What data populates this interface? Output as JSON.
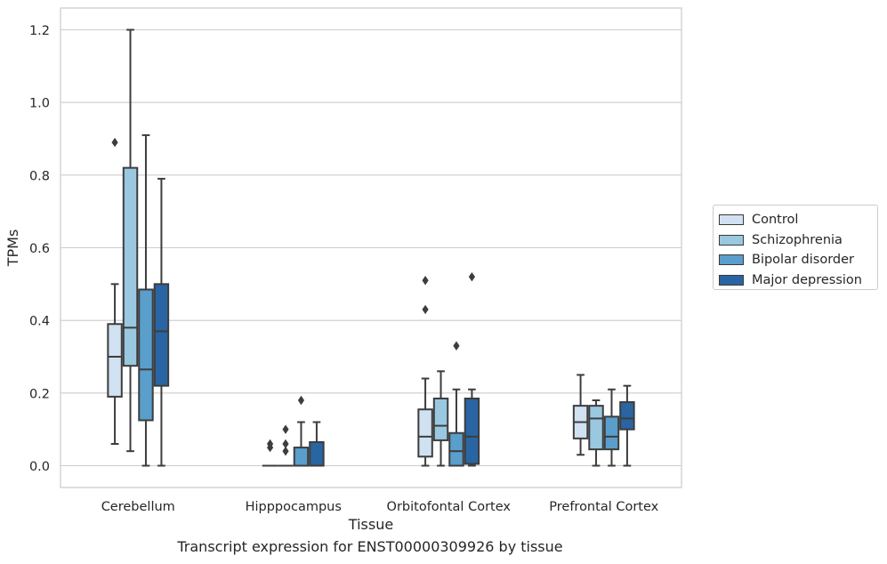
{
  "caption": "Transcript expression for ENST00000309926 by tissue",
  "chart_data": {
    "type": "box",
    "xlabel": "Tissue",
    "ylabel": "TPMs",
    "ylim": [
      -0.06,
      1.26
    ],
    "yticks": [
      0.0,
      0.2,
      0.4,
      0.6,
      0.8,
      1.0,
      1.2
    ],
    "ytick_labels": [
      "0.0",
      "0.2",
      "0.4",
      "0.6",
      "0.8",
      "1.0",
      "1.2"
    ],
    "grid": "horizontal",
    "legend_position": "right",
    "categories": [
      "Cerebellum",
      "Hipppocampus",
      "Orbitofontal Cortex",
      "Prefrontal Cortex"
    ],
    "series": [
      {
        "name": "Control",
        "color": "#d0e1f2",
        "boxes": [
          {
            "whisker_low": 0.06,
            "q1": 0.19,
            "median": 0.3,
            "q3": 0.39,
            "whisker_high": 0.5,
            "outliers": [
              0.89
            ]
          },
          {
            "whisker_low": 0.0,
            "q1": 0.0,
            "median": 0.0,
            "q3": 0.0,
            "whisker_high": 0.0,
            "outliers": [
              0.05,
              0.06
            ]
          },
          {
            "whisker_low": 0.0,
            "q1": 0.025,
            "median": 0.08,
            "q3": 0.155,
            "whisker_high": 0.24,
            "outliers": [
              0.43,
              0.51
            ]
          },
          {
            "whisker_low": 0.03,
            "q1": 0.075,
            "median": 0.12,
            "q3": 0.165,
            "whisker_high": 0.25,
            "outliers": []
          }
        ]
      },
      {
        "name": "Schizophrenia",
        "color": "#9ac8e0",
        "boxes": [
          {
            "whisker_low": 0.04,
            "q1": 0.275,
            "median": 0.38,
            "q3": 0.82,
            "whisker_high": 1.2,
            "outliers": []
          },
          {
            "whisker_low": 0.0,
            "q1": 0.0,
            "median": 0.0,
            "q3": 0.0,
            "whisker_high": 0.0,
            "outliers": [
              0.04,
              0.06,
              0.1
            ]
          },
          {
            "whisker_low": 0.0,
            "q1": 0.07,
            "median": 0.11,
            "q3": 0.185,
            "whisker_high": 0.26,
            "outliers": []
          },
          {
            "whisker_low": 0.0,
            "q1": 0.045,
            "median": 0.13,
            "q3": 0.165,
            "whisker_high": 0.18,
            "outliers": []
          }
        ]
      },
      {
        "name": "Bipolar disorder",
        "color": "#5a9ecb",
        "boxes": [
          {
            "whisker_low": 0.0,
            "q1": 0.125,
            "median": 0.265,
            "q3": 0.485,
            "whisker_high": 0.91,
            "outliers": []
          },
          {
            "whisker_low": 0.0,
            "q1": 0.0,
            "median": 0.0,
            "q3": 0.05,
            "whisker_high": 0.12,
            "outliers": [
              0.18
            ]
          },
          {
            "whisker_low": 0.0,
            "q1": 0.0,
            "median": 0.04,
            "q3": 0.09,
            "whisker_high": 0.21,
            "outliers": [
              0.33
            ]
          },
          {
            "whisker_low": 0.0,
            "q1": 0.045,
            "median": 0.08,
            "q3": 0.135,
            "whisker_high": 0.21,
            "outliers": []
          }
        ]
      },
      {
        "name": "Major depression",
        "color": "#2965a3",
        "boxes": [
          {
            "whisker_low": 0.0,
            "q1": 0.22,
            "median": 0.37,
            "q3": 0.5,
            "whisker_high": 0.79,
            "outliers": []
          },
          {
            "whisker_low": 0.0,
            "q1": 0.0,
            "median": 0.0,
            "q3": 0.065,
            "whisker_high": 0.12,
            "outliers": []
          },
          {
            "whisker_low": 0.0,
            "q1": 0.005,
            "median": 0.08,
            "q3": 0.185,
            "whisker_high": 0.21,
            "outliers": [
              0.52
            ]
          },
          {
            "whisker_low": 0.0,
            "q1": 0.1,
            "median": 0.13,
            "q3": 0.175,
            "whisker_high": 0.22,
            "outliers": []
          }
        ]
      }
    ]
  }
}
